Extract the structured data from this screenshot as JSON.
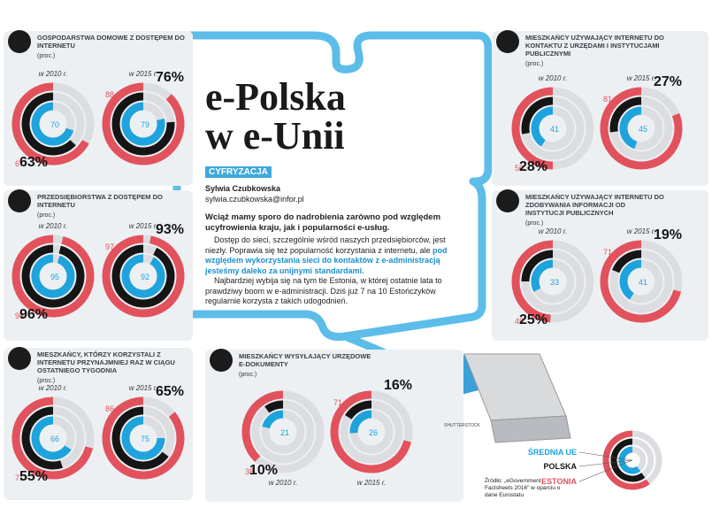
{
  "article": {
    "title_line1": "e-Polska",
    "title_line2": "w e-Unii",
    "tag": "CYFRYZACJA",
    "author": "Sylwia Czubkowska",
    "email": "sylwia.czubkowska@infor.pl",
    "lead": "Wciąż mamy sporo do nadrobienia zarówno pod względem ucyfrowienia kraju, jak i popularności e-usług.",
    "body1": "Dostęp do sieci, szczególnie wśród naszych przedsiębiorców, jest niezły. Poprawia się też popularność korzystania z internetu, ale ",
    "body1_highlight": "pod względem wykorzystania sieci do kontaktów z e-administracją jesteśmy daleko za unijnymi standardami.",
    "body2": "Najbardziej wybija się na tym tle Estonia, w której ostatnie lata to prawdziwy boom w e-administracji. Dziś już 7 na 10 Estończyków regularnie korzysta z takich udogodnień."
  },
  "legend": {
    "eu": "ŚREDNIA UE",
    "poland": "POLSKA",
    "estonia": "ESTONIA"
  },
  "colors": {
    "eu": "#1ea3dd",
    "poland": "#151515",
    "estonia": "#e2525c",
    "track": "#dcdde0"
  },
  "source": "Źródło: „eGovernment Factsheets 2016\" w oparciu o dane Eurostatu",
  "photo_credit": "SHUTTERSTOCK",
  "panels": [
    {
      "title": "GOSPODARSTWA DOMOWE Z DOSTĘPEM DO INTERNETU",
      "unit": "(proc.)",
      "years": [
        "w 2010 r.",
        "w 2015 r."
      ],
      "estonia": [
        67,
        88
      ],
      "poland": [
        63,
        76
      ],
      "poland_labels": [
        "63%",
        "76%"
      ],
      "eu": [
        70,
        79
      ]
    },
    {
      "title": "PRZEDSIĘBIORSTWA Z DOSTĘPEM DO INTERNETU",
      "unit": "(proc.)",
      "years": [
        "w 2010 r.",
        "w 2015 r."
      ],
      "estonia": [
        96,
        97
      ],
      "poland": [
        96,
        93
      ],
      "poland_labels": [
        "96%",
        "93%"
      ],
      "eu": [
        95,
        92
      ]
    },
    {
      "title": "MIESZKAŃCY, KTÓRZY KORZYSTALI Z INTERNETU PRZYNAJMNIEJ RAZ W CIĄGU OSTATNIEGO TYGODNIA",
      "unit": "(proc.)",
      "years": [
        "w 2010 r.",
        "w 2015 r."
      ],
      "estonia": [
        71,
        86
      ],
      "poland": [
        55,
        65
      ],
      "poland_labels": [
        "55%",
        "65%"
      ],
      "eu": [
        66,
        75
      ]
    },
    {
      "title": "MIESZKAŃCY WYSYŁAJĄCY URZĘDOWE E-DOKUMENTY",
      "unit": "(proc.)",
      "years": [
        "w 2010 r.",
        "w 2015 r."
      ],
      "estonia": [
        38,
        71
      ],
      "poland": [
        10,
        16
      ],
      "poland_labels": [
        "10%",
        "16%"
      ],
      "eu": [
        21,
        26
      ]
    },
    {
      "title": "MIESZKAŃCY UŻYWAJĄCY INTERNETU DO KONTAKTU Z URZĘDAMI I INSTYTUCJAMI PUBLICZNYMI",
      "unit": "(proc.)",
      "years": [
        "w 2010 r.",
        "w 2015 r."
      ],
      "estonia": [
        50,
        81
      ],
      "poland": [
        28,
        27
      ],
      "poland_labels": [
        "28%",
        "27%"
      ],
      "eu": [
        41,
        45
      ]
    },
    {
      "title": "MIESZKAŃCY UŻYWAJĄCY INTERNETU DO ZDOBYWANIA INFORMACJI OD INSTYTUCJI PUBLICZNYCH",
      "unit": "(proc.)",
      "years": [
        "w 2010 r.",
        "w 2015 r."
      ],
      "estonia": [
        49,
        71
      ],
      "poland": [
        25,
        19
      ],
      "poland_labels": [
        "25%",
        "19%"
      ],
      "eu": [
        33,
        41
      ]
    }
  ]
}
